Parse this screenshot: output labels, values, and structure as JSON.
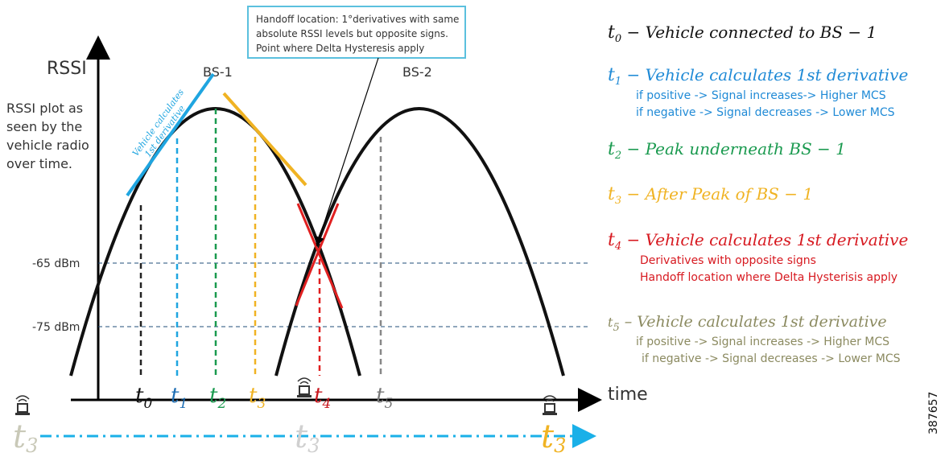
{
  "axis": {
    "y_label": "RSSI",
    "x_label": "time"
  },
  "description": [
    "RSSI plot as",
    "seen by the",
    "vehicle radio",
    "over time."
  ],
  "callout": [
    "Handoff location: 1°derivatives with same",
    "absolute RSSI levels but opposite signs.",
    "Point where Delta Hysteresis apply"
  ],
  "levels": [
    "-65 dBm",
    "-75 dBm"
  ],
  "stations": [
    "BS-1",
    "BS-2"
  ],
  "tangent_label": [
    "Vehicle calculates",
    "1st derivative"
  ],
  "markers": [
    {
      "symbol": "t",
      "sub": "0"
    },
    {
      "symbol": "t",
      "sub": "1"
    },
    {
      "symbol": "t",
      "sub": "2"
    },
    {
      "symbol": "t",
      "sub": "3"
    },
    {
      "symbol": "t",
      "sub": "4"
    },
    {
      "symbol": "t",
      "sub": "5"
    }
  ],
  "legend": [
    {
      "symbol": "t",
      "sub": "0",
      "text": " − Vehicle connected to BS − 1",
      "details": []
    },
    {
      "symbol": "t",
      "sub": "1",
      "text": " − Vehicle calculates 1st derivative",
      "details": [
        "if positive -> Signal increases-> Higher MCS",
        "if negative -> Signal decreases -> Lower MCS"
      ]
    },
    {
      "symbol": "t",
      "sub": "2",
      "text": " − Peak underneath BS − 1",
      "details": []
    },
    {
      "symbol": "t",
      "sub": "3",
      "text": " − After Peak of BS − 1",
      "details": []
    },
    {
      "symbol": "t",
      "sub": "4",
      "text": " − Vehicle calculates 1st derivative",
      "details": [
        "Derivatives with opposite signs",
        "Handoff location where Delta Hysterisis apply"
      ]
    },
    {
      "symbol": "t",
      "sub": "5",
      "text": " – Vehicle calculates 1st derivative",
      "details": [
        "if positive -> Signal increases -> Higher MCS",
        "if negative -> Signal decreases -> Lower MCS"
      ]
    }
  ],
  "bottom_labels": [
    {
      "symbol": "t",
      "sub": "3"
    },
    {
      "symbol": "t",
      "sub": "3"
    },
    {
      "symbol": "t",
      "sub": "3"
    }
  ],
  "figure_id": "387657"
}
